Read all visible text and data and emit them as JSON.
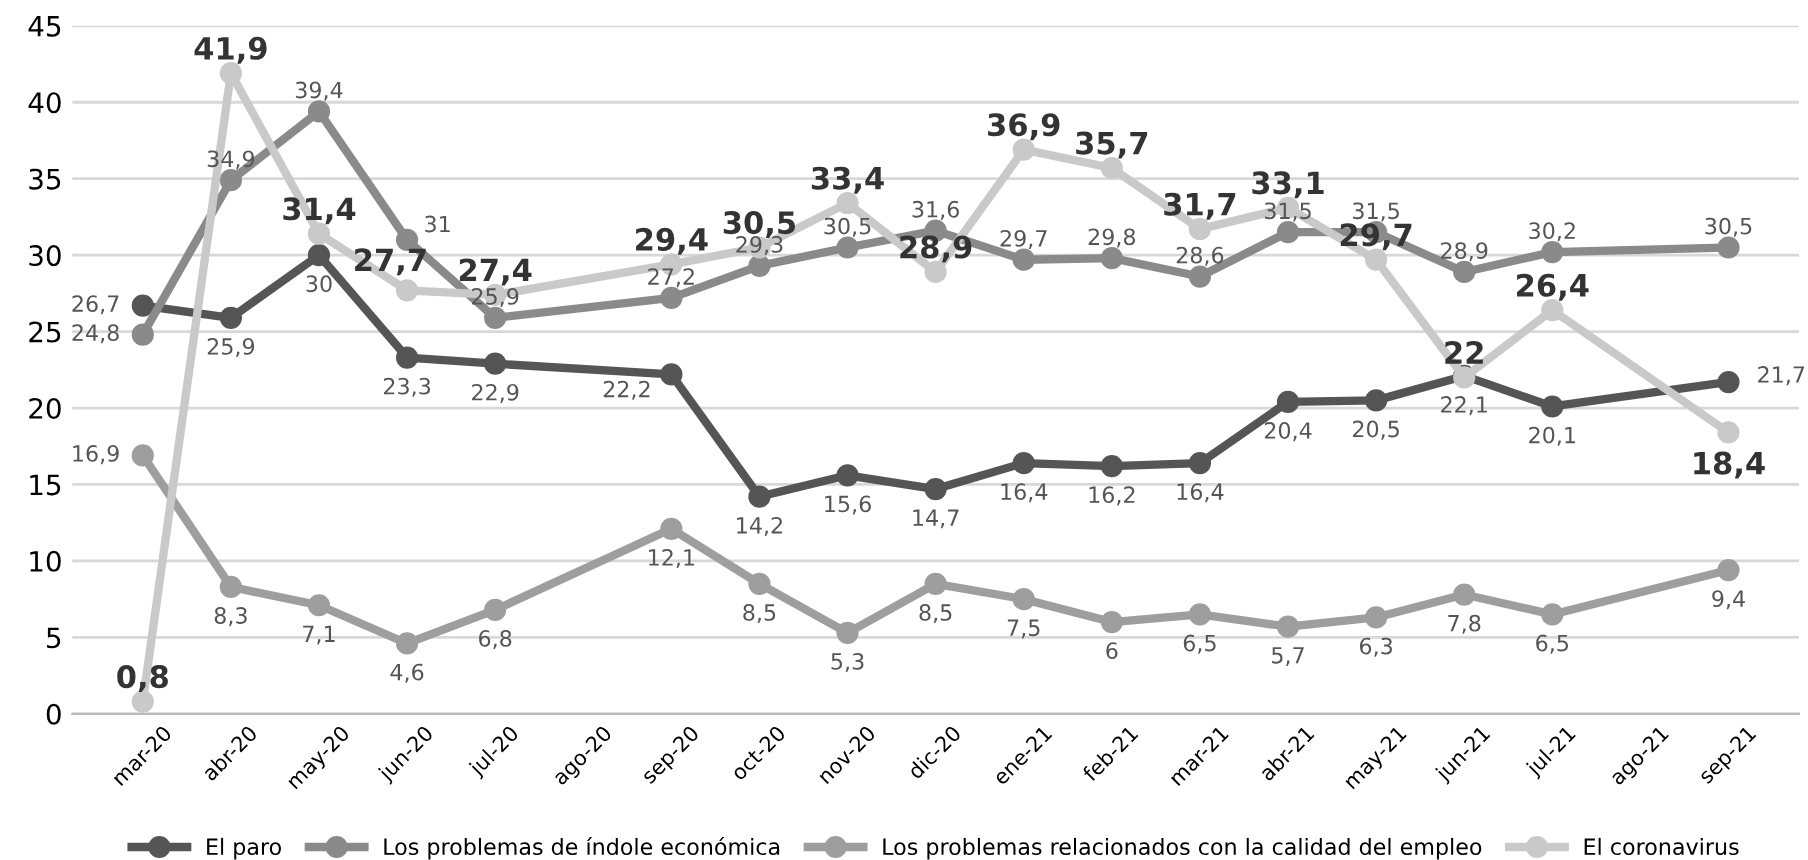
{
  "chart_data": {
    "type": "line",
    "categories": [
      "mar-20",
      "abr-20",
      "may-20",
      "jun-20",
      "jul-20",
      "ago-20",
      "sep-20",
      "oct-20",
      "nov-20",
      "dic-20",
      "ene-21",
      "feb-21",
      "mar-21",
      "abr-21",
      "may-21",
      "jun-21",
      "jul-21",
      "ago-21",
      "sep-21"
    ],
    "series": [
      {
        "name": "El paro",
        "color": "#555555",
        "values": [
          26.7,
          25.9,
          30,
          23.3,
          22.9,
          null,
          22.2,
          14.2,
          15.6,
          14.7,
          16.4,
          16.2,
          16.4,
          20.4,
          20.5,
          22.1,
          20.1,
          null,
          21.7
        ],
        "value_labels": [
          "26,7",
          "25,9",
          "30",
          "23,3",
          "22,9",
          null,
          "22,2",
          "14,2",
          "15,6",
          "14,7",
          "16,4",
          "16,2",
          "16,4",
          "20,4",
          "20,5",
          "22,1",
          "20,1",
          null,
          "21,7"
        ]
      },
      {
        "name": "Los problemas de índole económica",
        "color": "#8a8a8a",
        "values": [
          24.8,
          34.9,
          39.4,
          31,
          25.9,
          null,
          27.2,
          29.3,
          30.5,
          31.6,
          29.7,
          29.8,
          28.6,
          31.5,
          31.5,
          28.9,
          30.2,
          null,
          30.5
        ],
        "value_labels": [
          "24,8",
          "34,9",
          "39,4",
          "31",
          "25,9",
          null,
          "27,2",
          "29,3",
          "30,5",
          "31,6",
          "29,7",
          "29,8",
          "28,6",
          "31,5",
          "31,5",
          "28,9",
          "30,2",
          null,
          "30,5"
        ]
      },
      {
        "name": "Los problemas relacionados con la calidad del empleo",
        "color": "#9e9e9e",
        "values": [
          16.9,
          8.3,
          7.1,
          4.6,
          6.8,
          null,
          12.1,
          8.5,
          5.3,
          8.5,
          7.5,
          6,
          6.5,
          5.7,
          6.3,
          7.8,
          6.5,
          null,
          9.4
        ],
        "value_labels": [
          "16,9",
          "8,3",
          "7,1",
          "4,6",
          "6,8",
          null,
          "12,1",
          "8,5",
          "5,3",
          "8,5",
          "7,5",
          "6",
          "6,5",
          "5,7",
          "6,3",
          "7,8",
          "6,5",
          null,
          "9,4"
        ]
      },
      {
        "name": "El coronavirus",
        "color": "#c9c9c9",
        "values": [
          0.8,
          41.9,
          31.4,
          27.7,
          27.4,
          null,
          29.4,
          30.5,
          33.4,
          28.9,
          36.9,
          35.7,
          31.7,
          33.1,
          29.7,
          22,
          26.4,
          null,
          18.4
        ],
        "value_labels": [
          "0,8",
          "41,9",
          "31,4",
          "27,7",
          "27,4",
          null,
          "29,4",
          "30,5",
          "33,4",
          "28,9",
          "36,9",
          "35,7",
          "31,7",
          "33,1",
          "29,7",
          "22",
          "26,4",
          null,
          "18,4"
        ]
      }
    ],
    "ylim": [
      0,
      45
    ],
    "yticks": [
      0,
      5,
      10,
      15,
      20,
      25,
      30,
      35,
      40,
      45
    ],
    "grid": "y",
    "legend": "bottom",
    "marker": "circle",
    "line_style": "solid"
  }
}
